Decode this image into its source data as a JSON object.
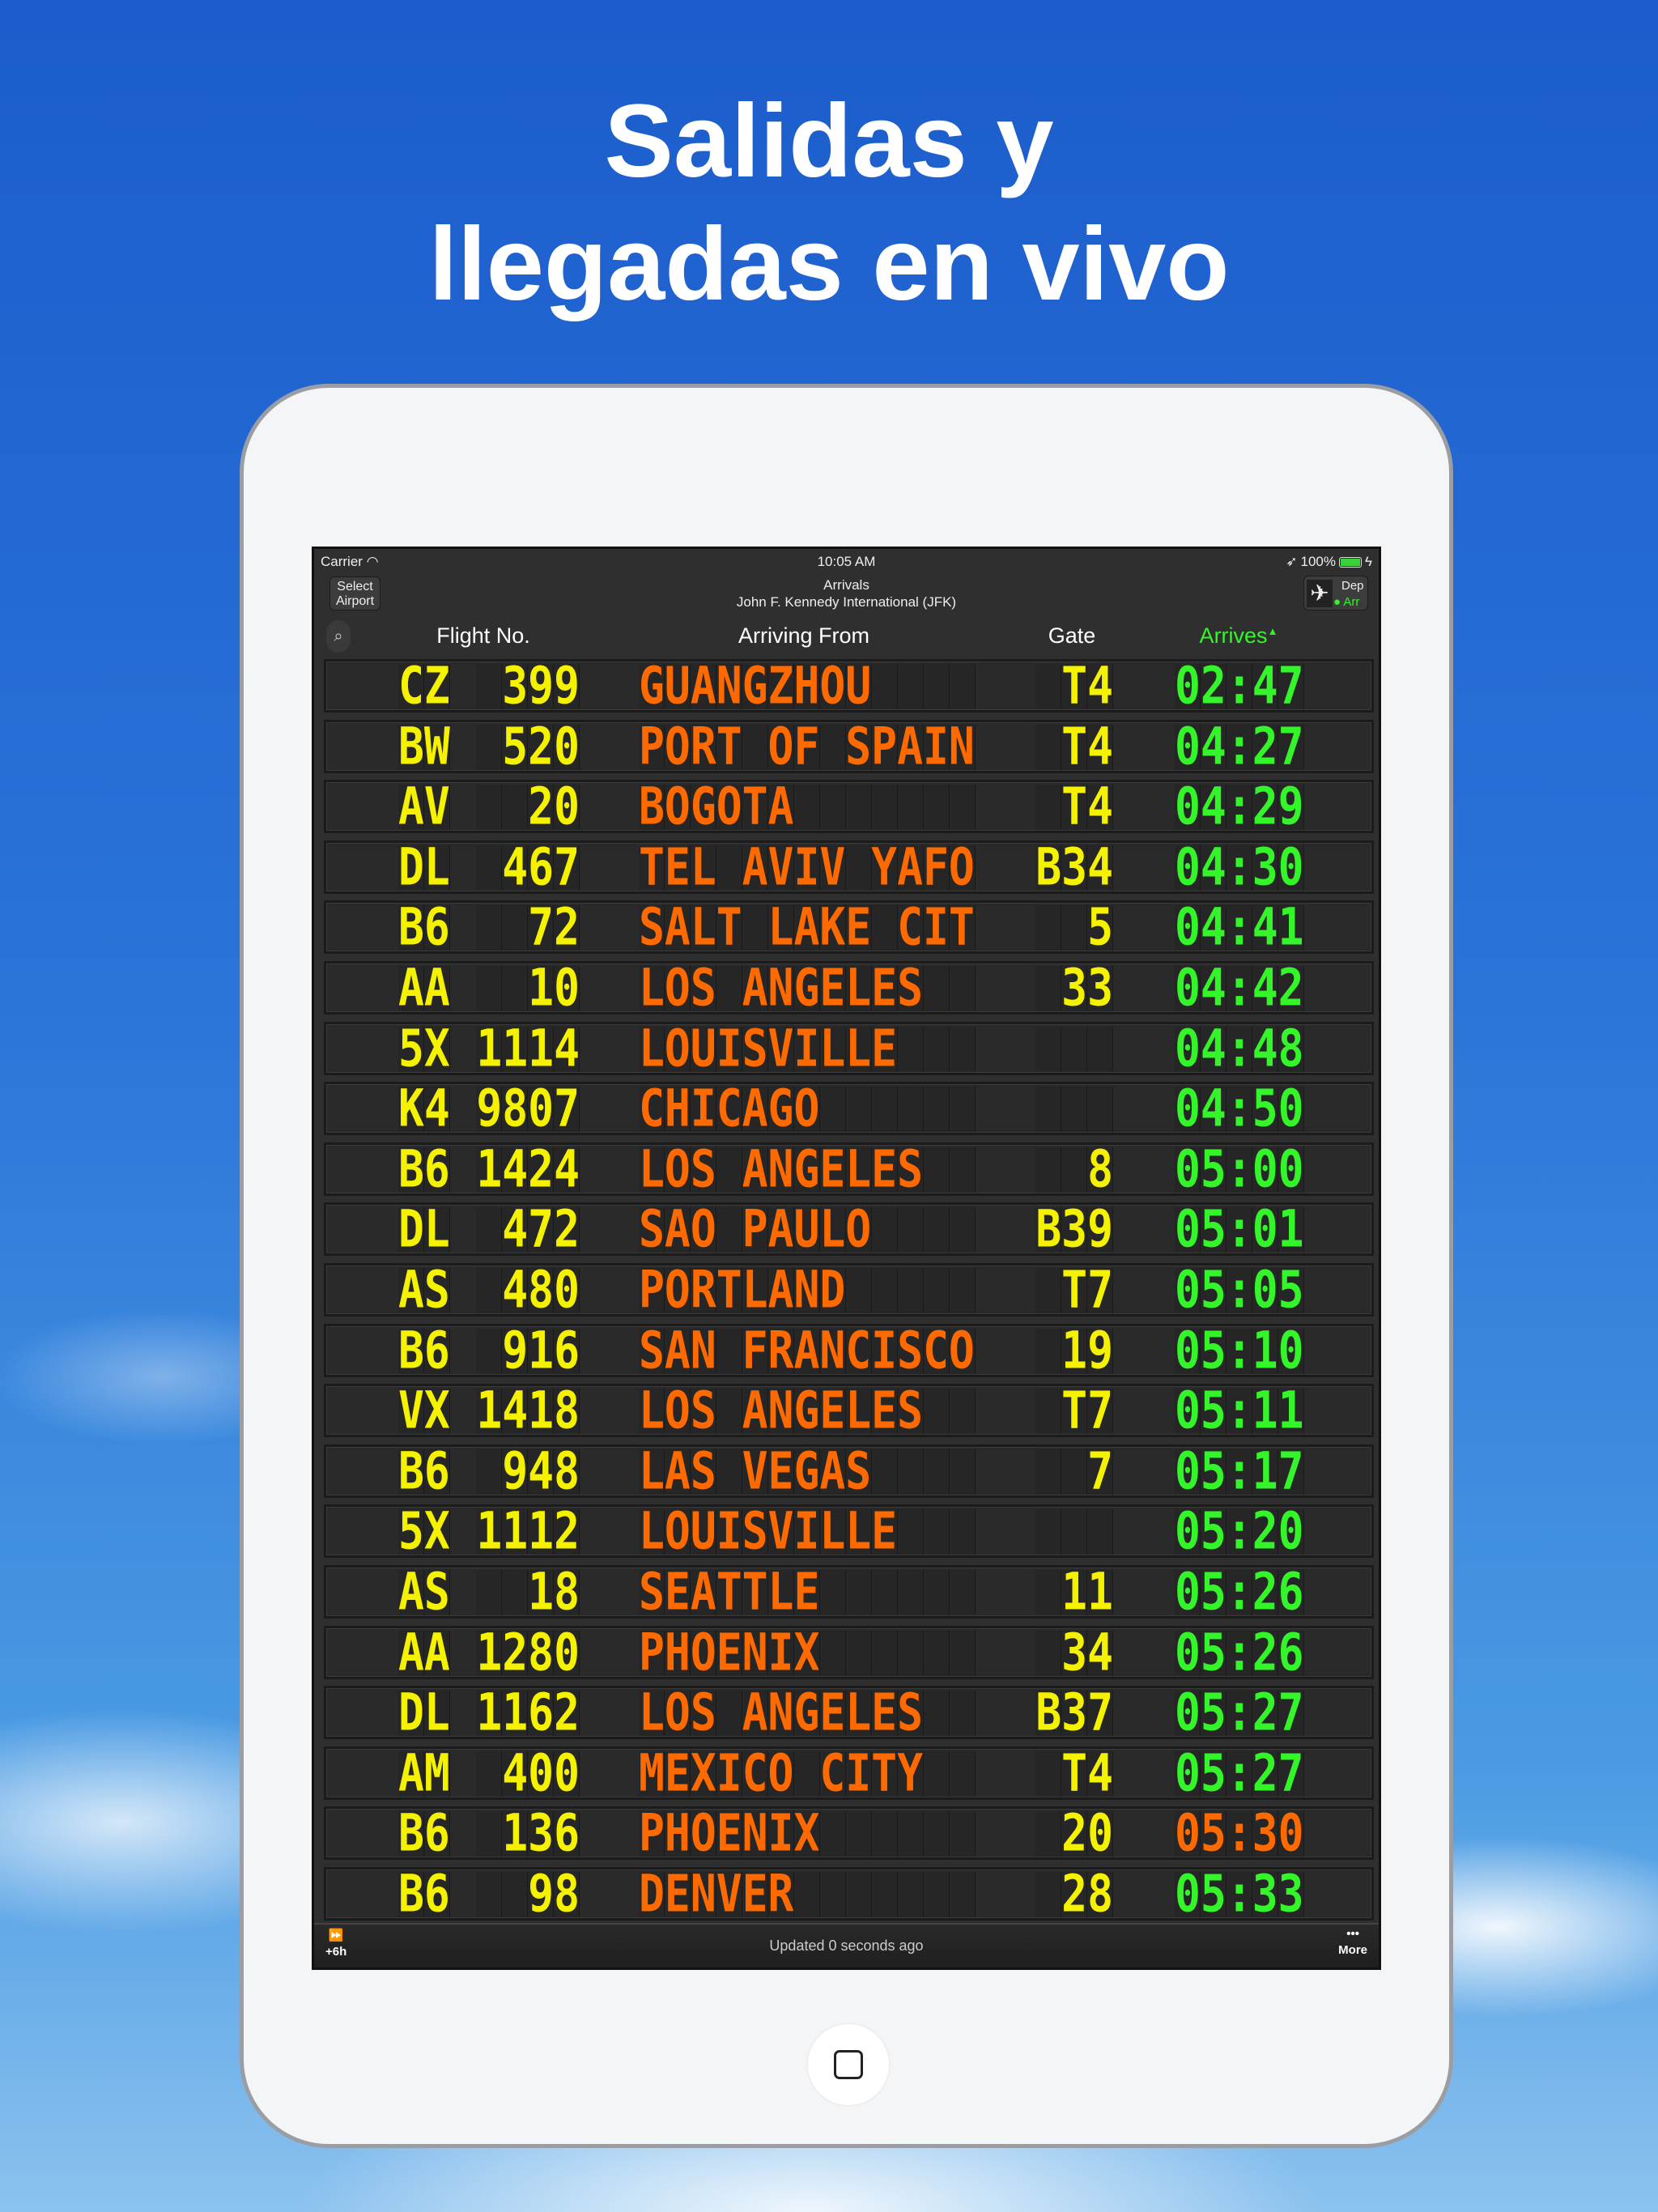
{
  "headline": {
    "line1": "Salidas y",
    "line2": "llegadas en vivo"
  },
  "status_bar": {
    "carrier": "Carrier",
    "time": "10:05 AM",
    "battery": "100%"
  },
  "nav": {
    "select_airport_line1": "Select",
    "select_airport_line2": "Airport",
    "title": "Arrivals",
    "subtitle": "John F. Kennedy International (JFK)",
    "toggle_dep": "Dep",
    "toggle_arr": "Arr"
  },
  "columns": {
    "flight": "Flight No.",
    "from": "Arriving From",
    "gate": "Gate",
    "arrives": "Arrives",
    "sort_indicator": "▲"
  },
  "colors": {
    "airline": "#f5f200",
    "city": "#ff6a00",
    "time": "#33f52a",
    "time_alert": "#ff6a00"
  },
  "rows": [
    {
      "airline": "CZ",
      "number": "399",
      "city": "GUANGZHOU",
      "gate": "T4",
      "time": "02:47",
      "time_color": "green"
    },
    {
      "airline": "BW",
      "number": "520",
      "city": "PORT OF SPAIN",
      "gate": "T4",
      "time": "04:27",
      "time_color": "green"
    },
    {
      "airline": "AV",
      "number": "20",
      "city": "BOGOTA",
      "gate": "T4",
      "time": "04:29",
      "time_color": "green"
    },
    {
      "airline": "DL",
      "number": "467",
      "city": "TEL AVIV YAFO",
      "gate": "B34",
      "time": "04:30",
      "time_color": "green"
    },
    {
      "airline": "B6",
      "number": "72",
      "city": "SALT LAKE CIT",
      "gate": "5",
      "time": "04:41",
      "time_color": "green"
    },
    {
      "airline": "AA",
      "number": "10",
      "city": "LOS ANGELES",
      "gate": "33",
      "time": "04:42",
      "time_color": "green"
    },
    {
      "airline": "5X",
      "number": "1114",
      "city": "LOUISVILLE",
      "gate": "",
      "time": "04:48",
      "time_color": "green"
    },
    {
      "airline": "K4",
      "number": "9807",
      "city": "CHICAGO",
      "gate": "",
      "time": "04:50",
      "time_color": "green"
    },
    {
      "airline": "B6",
      "number": "1424",
      "city": "LOS ANGELES",
      "gate": "8",
      "time": "05:00",
      "time_color": "green"
    },
    {
      "airline": "DL",
      "number": "472",
      "city": "SAO PAULO",
      "gate": "B39",
      "time": "05:01",
      "time_color": "green"
    },
    {
      "airline": "AS",
      "number": "480",
      "city": "PORTLAND",
      "gate": "T7",
      "time": "05:05",
      "time_color": "green"
    },
    {
      "airline": "B6",
      "number": "916",
      "city": "SAN FRANCISCO",
      "gate": "19",
      "time": "05:10",
      "time_color": "green"
    },
    {
      "airline": "VX",
      "number": "1418",
      "city": "LOS ANGELES",
      "gate": "T7",
      "time": "05:11",
      "time_color": "green"
    },
    {
      "airline": "B6",
      "number": "948",
      "city": "LAS VEGAS",
      "gate": "7",
      "time": "05:17",
      "time_color": "green"
    },
    {
      "airline": "5X",
      "number": "1112",
      "city": "LOUISVILLE",
      "gate": "",
      "time": "05:20",
      "time_color": "green"
    },
    {
      "airline": "AS",
      "number": "18",
      "city": "SEATTLE",
      "gate": "11",
      "time": "05:26",
      "time_color": "green"
    },
    {
      "airline": "AA",
      "number": "1280",
      "city": "PHOENIX",
      "gate": "34",
      "time": "05:26",
      "time_color": "green"
    },
    {
      "airline": "DL",
      "number": "1162",
      "city": "LOS ANGELES",
      "gate": "B37",
      "time": "05:27",
      "time_color": "green"
    },
    {
      "airline": "AM",
      "number": "400",
      "city": "MEXICO CITY",
      "gate": "T4",
      "time": "05:27",
      "time_color": "green"
    },
    {
      "airline": "B6",
      "number": "136",
      "city": "PHOENIX",
      "gate": "20",
      "time": "05:30",
      "time_color": "orange"
    },
    {
      "airline": "B6",
      "number": "98",
      "city": "DENVER",
      "gate": "28",
      "time": "05:33",
      "time_color": "green"
    }
  ],
  "toolbar": {
    "forward_label": "+6h",
    "updated": "Updated 0 seconds ago",
    "more_label": "More"
  },
  "icons": {
    "search": "search-icon",
    "wifi": "wifi-icon",
    "location": "location-arrow-icon",
    "battery": "battery-icon",
    "plane": "plane-icon",
    "fast_forward": "fast-forward-icon",
    "more": "ellipsis-icon",
    "home": "home-button-icon"
  }
}
